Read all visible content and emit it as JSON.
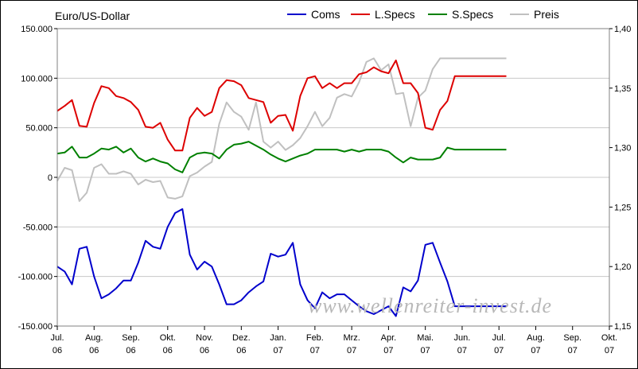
{
  "chart_data": {
    "type": "line",
    "title": "Euro/US-Dollar",
    "watermark": "www.wellenreiter-invest.de",
    "y_left": {
      "min": -150000,
      "max": 150000,
      "ticks": [
        {
          "value": 150000,
          "label": "150.000"
        },
        {
          "value": 100000,
          "label": "100.000"
        },
        {
          "value": 50000,
          "label": "50.000"
        },
        {
          "value": 0,
          "label": "0"
        },
        {
          "value": -50000,
          "label": "-50.000"
        },
        {
          "value": -100000,
          "label": "-100.000"
        },
        {
          "value": -150000,
          "label": "-150.000"
        }
      ]
    },
    "y_right": {
      "min": 1.15,
      "max": 1.4,
      "ticks": [
        {
          "value": 1.4,
          "label": "1,40"
        },
        {
          "value": 1.35,
          "label": "1,35"
        },
        {
          "value": 1.3,
          "label": "1,30"
        },
        {
          "value": 1.25,
          "label": "1,25"
        },
        {
          "value": 1.2,
          "label": "1,20"
        },
        {
          "value": 1.15,
          "label": "1,15"
        }
      ]
    },
    "x_axis": {
      "min": 0,
      "max": 15,
      "ticks": [
        {
          "month": "Jul.",
          "year": "06"
        },
        {
          "month": "Aug.",
          "year": "06"
        },
        {
          "month": "Sep.",
          "year": "06"
        },
        {
          "month": "Okt.",
          "year": "06"
        },
        {
          "month": "Nov.",
          "year": "06"
        },
        {
          "month": "Dez.",
          "year": "06"
        },
        {
          "month": "Jan.",
          "year": "07"
        },
        {
          "month": "Feb.",
          "year": "07"
        },
        {
          "month": "Mrz.",
          "year": "07"
        },
        {
          "month": "Apr.",
          "year": "07"
        },
        {
          "month": "Mai.",
          "year": "07"
        },
        {
          "month": "Jun.",
          "year": "07"
        },
        {
          "month": "Jul.",
          "year": "07"
        },
        {
          "month": "Aug.",
          "year": "07"
        },
        {
          "month": "Sep.",
          "year": "07"
        },
        {
          "month": "Okt.",
          "year": "07"
        }
      ]
    },
    "grid": "horizontal",
    "legend_position": "top",
    "series": [
      {
        "name": "Coms",
        "color": "#0000cc",
        "axis": "left",
        "x": [
          0,
          0.2,
          0.4,
          0.6,
          0.8,
          1.0,
          1.2,
          1.4,
          1.6,
          1.8,
          2.0,
          2.2,
          2.4,
          2.6,
          2.8,
          3.0,
          3.2,
          3.4,
          3.6,
          3.8,
          4.0,
          4.2,
          4.4,
          4.6,
          4.8,
          5.0,
          5.2,
          5.4,
          5.6,
          5.8,
          6.0,
          6.2,
          6.4,
          6.6,
          6.8,
          7.0,
          7.2,
          7.4,
          7.6,
          7.8,
          8.0,
          8.2,
          8.4,
          8.6,
          8.8,
          9.0,
          9.2,
          9.4,
          9.6,
          9.8,
          10.0,
          10.2,
          10.4,
          10.6,
          10.8,
          11.0,
          11.2,
          11.4,
          11.6,
          11.8,
          12.0,
          12.2
        ],
        "y": [
          -90000,
          -95000,
          -108000,
          -72000,
          -70000,
          -100000,
          -122000,
          -118000,
          -112000,
          -104000,
          -104000,
          -86000,
          -64000,
          -70000,
          -72000,
          -50000,
          -36000,
          -32000,
          -78000,
          -93000,
          -85000,
          -90000,
          -108000,
          -128000,
          -128000,
          -124000,
          -116000,
          -110000,
          -105000,
          -77000,
          -80000,
          -78000,
          -66000,
          -108000,
          -124000,
          -132000,
          -116000,
          -122000,
          -118000,
          -118000,
          -124000,
          -130000,
          -135000,
          -138000,
          -134000,
          -130000,
          -140000,
          -111000,
          -115000,
          -104000,
          -68000,
          -66000,
          -86000,
          -105000,
          -130000,
          -130000,
          -130000,
          -130000,
          -130000,
          -130000,
          -130000,
          -130000
        ]
      },
      {
        "name": "L.Specs",
        "color": "#dd0000",
        "axis": "left",
        "x": [
          0,
          0.2,
          0.4,
          0.6,
          0.8,
          1.0,
          1.2,
          1.4,
          1.6,
          1.8,
          2.0,
          2.2,
          2.4,
          2.6,
          2.8,
          3.0,
          3.2,
          3.4,
          3.6,
          3.8,
          4.0,
          4.2,
          4.4,
          4.6,
          4.8,
          5.0,
          5.2,
          5.4,
          5.6,
          5.8,
          6.0,
          6.2,
          6.4,
          6.6,
          6.8,
          7.0,
          7.2,
          7.4,
          7.6,
          7.8,
          8.0,
          8.2,
          8.4,
          8.6,
          8.8,
          9.0,
          9.2,
          9.4,
          9.6,
          9.8,
          10.0,
          10.2,
          10.4,
          10.6,
          10.8,
          11.0,
          11.2,
          11.4,
          11.6,
          11.8,
          12.0,
          12.2
        ],
        "y": [
          67000,
          72000,
          78000,
          52000,
          51000,
          75000,
          92000,
          90000,
          82000,
          80000,
          76000,
          68000,
          51000,
          50000,
          55000,
          38000,
          27000,
          27000,
          60000,
          70000,
          62000,
          66000,
          90000,
          98000,
          97000,
          93000,
          80000,
          78000,
          76000,
          55000,
          62000,
          63000,
          47000,
          82000,
          100000,
          102000,
          90000,
          95000,
          90000,
          95000,
          95000,
          104000,
          106000,
          111000,
          107000,
          105000,
          118000,
          95000,
          95000,
          85000,
          50000,
          48000,
          68000,
          77000,
          102000,
          102000,
          102000,
          102000,
          102000,
          102000,
          102000,
          102000
        ]
      },
      {
        "name": "S.Specs",
        "color": "#008000",
        "axis": "left",
        "x": [
          0,
          0.2,
          0.4,
          0.6,
          0.8,
          1.0,
          1.2,
          1.4,
          1.6,
          1.8,
          2.0,
          2.2,
          2.4,
          2.6,
          2.8,
          3.0,
          3.2,
          3.4,
          3.6,
          3.8,
          4.0,
          4.2,
          4.4,
          4.6,
          4.8,
          5.0,
          5.2,
          5.4,
          5.6,
          5.8,
          6.0,
          6.2,
          6.4,
          6.6,
          6.8,
          7.0,
          7.2,
          7.4,
          7.6,
          7.8,
          8.0,
          8.2,
          8.4,
          8.6,
          8.8,
          9.0,
          9.2,
          9.4,
          9.6,
          9.8,
          10.0,
          10.2,
          10.4,
          10.6,
          10.8,
          11.0,
          11.2,
          11.4,
          11.6,
          11.8,
          12.0,
          12.2
        ],
        "y": [
          24000,
          25000,
          31000,
          20000,
          20000,
          24000,
          29000,
          28000,
          31000,
          25000,
          29000,
          20000,
          16000,
          19000,
          16000,
          14000,
          8000,
          5000,
          20000,
          24000,
          25000,
          24000,
          19000,
          28000,
          33000,
          34000,
          36000,
          32000,
          28000,
          23000,
          19000,
          16000,
          19000,
          22000,
          24000,
          28000,
          28000,
          28000,
          28000,
          26000,
          28000,
          26000,
          28000,
          28000,
          28000,
          26000,
          20000,
          15000,
          20000,
          18000,
          18000,
          18000,
          20000,
          30000,
          28000,
          28000,
          28000,
          28000,
          28000,
          28000,
          28000,
          28000
        ]
      },
      {
        "name": "Preis",
        "color": "#c0c0c0",
        "axis": "right",
        "x": [
          0,
          0.2,
          0.4,
          0.6,
          0.8,
          1.0,
          1.2,
          1.4,
          1.6,
          1.8,
          2.0,
          2.2,
          2.4,
          2.6,
          2.8,
          3.0,
          3.2,
          3.4,
          3.6,
          3.8,
          4.0,
          4.2,
          4.4,
          4.6,
          4.8,
          5.0,
          5.2,
          5.4,
          5.6,
          5.8,
          6.0,
          6.2,
          6.4,
          6.6,
          6.8,
          7.0,
          7.2,
          7.4,
          7.6,
          7.8,
          8.0,
          8.2,
          8.4,
          8.6,
          8.8,
          9.0,
          9.2,
          9.4,
          9.6,
          9.8,
          10.0,
          10.2,
          10.4,
          10.6,
          10.8,
          11.0,
          11.2,
          11.4,
          11.6,
          11.8,
          12.0,
          12.2
        ],
        "y": [
          1.272,
          1.283,
          1.281,
          1.255,
          1.262,
          1.283,
          1.286,
          1.278,
          1.278,
          1.28,
          1.278,
          1.269,
          1.273,
          1.271,
          1.272,
          1.258,
          1.257,
          1.259,
          1.276,
          1.279,
          1.284,
          1.288,
          1.32,
          1.338,
          1.33,
          1.326,
          1.315,
          1.338,
          1.305,
          1.3,
          1.305,
          1.298,
          1.302,
          1.308,
          1.318,
          1.33,
          1.318,
          1.325,
          1.342,
          1.345,
          1.343,
          1.355,
          1.372,
          1.375,
          1.365,
          1.37,
          1.345,
          1.346,
          1.318,
          1.342,
          1.348,
          1.366,
          1.375,
          1.375,
          1.375,
          1.375,
          1.375,
          1.375,
          1.375,
          1.375,
          1.375,
          1.375
        ]
      }
    ]
  }
}
